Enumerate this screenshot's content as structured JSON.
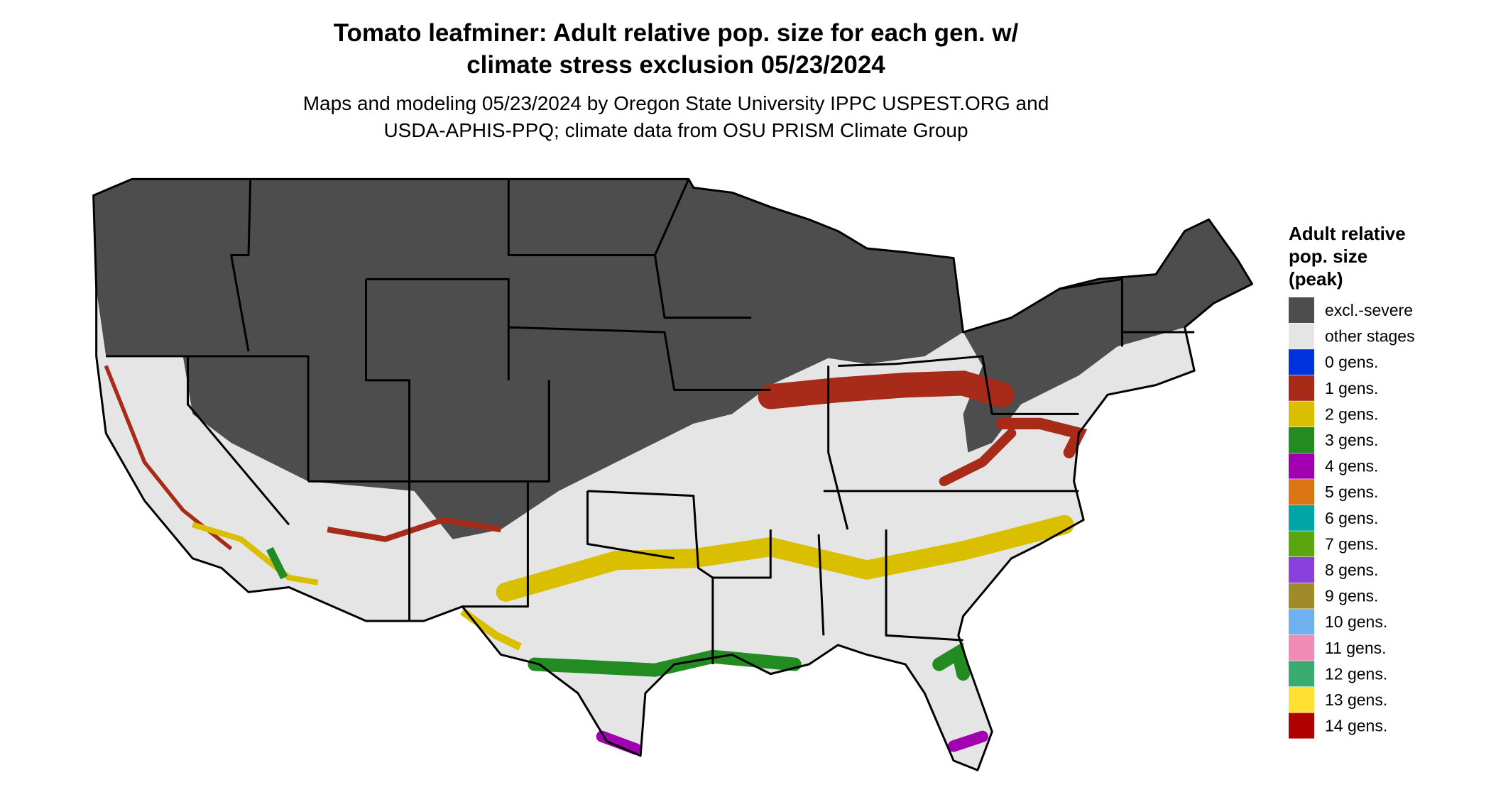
{
  "title": [
    "Tomato leafminer: Adult relative pop. size for each gen. w/",
    "climate stress exclusion 05/23/2024"
  ],
  "subtitle": [
    "Maps and modeling 05/23/2024 by Oregon State University IPPC USPEST.ORG and",
    "USDA-APHIS-PPQ; climate data from OSU PRISM Climate Group"
  ],
  "legend": {
    "title": [
      "Adult relative",
      "pop. size",
      "(peak)"
    ],
    "items": [
      {
        "label": "excl.-severe",
        "color": "#4d4d4d"
      },
      {
        "label": "other stages",
        "color": "#e5e5e5"
      },
      {
        "label": "0 gens.",
        "color": "#0033dd"
      },
      {
        "label": "1 gens.",
        "color": "#a82a18"
      },
      {
        "label": "2 gens.",
        "color": "#d9bf00"
      },
      {
        "label": "3 gens.",
        "color": "#228b22"
      },
      {
        "label": "4 gens.",
        "color": "#a000b0"
      },
      {
        "label": "5 gens.",
        "color": "#db7414"
      },
      {
        "label": "6 gens.",
        "color": "#00a5a5"
      },
      {
        "label": "7 gens.",
        "color": "#5aa510"
      },
      {
        "label": "8 gens.",
        "color": "#8b3fdc"
      },
      {
        "label": "9 gens.",
        "color": "#a08b2a"
      },
      {
        "label": "10 gens.",
        "color": "#6fb0f0"
      },
      {
        "label": "11 gens.",
        "color": "#f08cb4"
      },
      {
        "label": "12 gens.",
        "color": "#3aab6e"
      },
      {
        "label": "13 gens.",
        "color": "#ffe033"
      },
      {
        "label": "14 gens.",
        "color": "#b00000"
      }
    ]
  }
}
